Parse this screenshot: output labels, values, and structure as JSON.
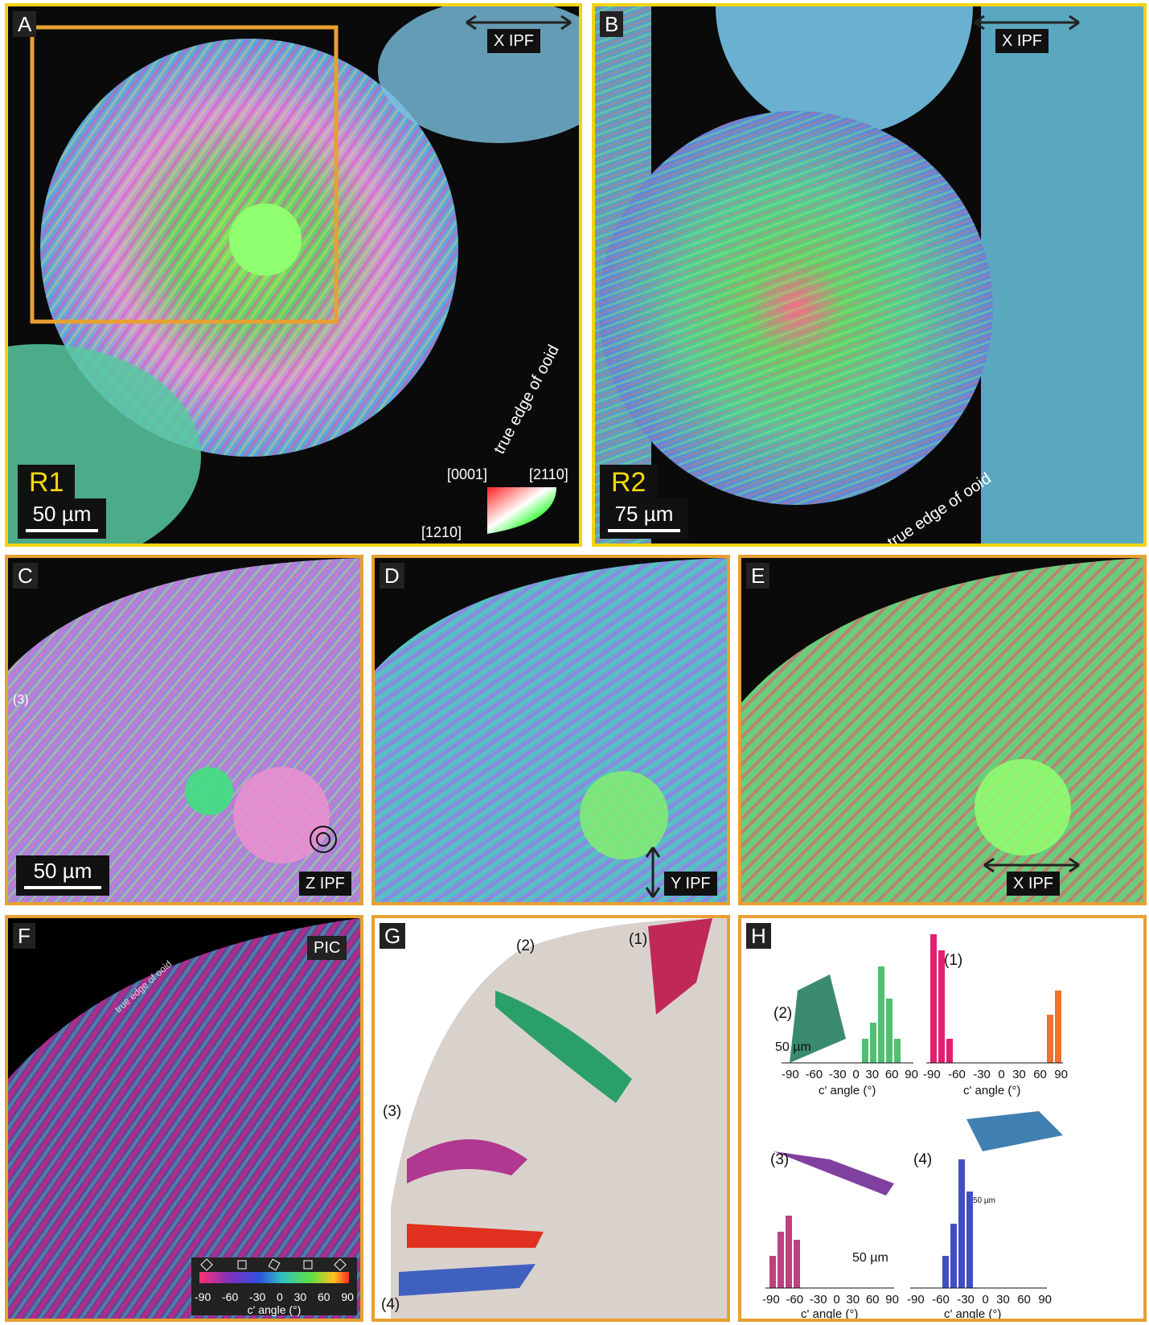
{
  "colors": {
    "outer_border": "#f0d410",
    "inner_border": "#e8a030",
    "background": "#0a0a0a"
  },
  "panelA": {
    "letter": "A",
    "ipf_label": "X IPF",
    "region": "R1",
    "scale": "50 µm",
    "edge_text": "true edge of ooid",
    "key": {
      "top_left": "[0001]",
      "top_right": "[2110]",
      "bottom_left": "[1210]"
    }
  },
  "panelB": {
    "letter": "B",
    "ipf_label": "X IPF",
    "region": "R2",
    "scale": "75 µm",
    "edge_text": "true edge of ooid"
  },
  "panelC": {
    "letter": "C",
    "ipf_label": "Z IPF",
    "scale": "50 µm",
    "marker": "(3)"
  },
  "panelD": {
    "letter": "D",
    "ipf_label": "Y IPF"
  },
  "panelE": {
    "letter": "E",
    "ipf_label": "X IPF"
  },
  "panelF": {
    "letter": "F",
    "pic_label": "PIC",
    "edge_text": "true edge of ooid",
    "colorbar_ticks": [
      "-90",
      "-60",
      "-30",
      "0",
      "30",
      "60",
      "90"
    ],
    "colorbar_label": "c' angle (°)"
  },
  "panelG": {
    "letter": "G",
    "markers": [
      "(1)",
      "(2)",
      "(3)",
      "(4)"
    ]
  },
  "panelH": {
    "letter": "H",
    "scale_top": "50 µm",
    "scale_mid": "50 µm",
    "scale_small": "50 µm",
    "hist": [
      {
        "marker": "(2)",
        "ticks": [
          "-90",
          "-60",
          "-30",
          "0",
          "30",
          "60",
          "90"
        ],
        "label": "c' angle (°)"
      },
      {
        "marker": "(1)",
        "ticks": [
          "-90",
          "-60",
          "-30",
          "0",
          "30",
          "60",
          "90"
        ],
        "label": "c' angle (°)"
      },
      {
        "marker": "(3)",
        "ticks": [
          "-90",
          "-60",
          "-30",
          "0",
          "30",
          "60",
          "90"
        ],
        "label": "c' angle (°)"
      },
      {
        "marker": "(4)",
        "ticks": [
          "-90",
          "-60",
          "-30",
          "0",
          "30",
          "60",
          "90"
        ],
        "label": "c' angle (°)"
      }
    ]
  }
}
